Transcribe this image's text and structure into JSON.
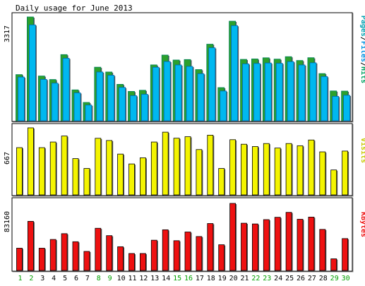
{
  "chart_data": {
    "type": "bar",
    "title": "Daily usage for June 2013",
    "days": [
      "1",
      "2",
      "3",
      "4",
      "5",
      "6",
      "7",
      "8",
      "9",
      "10",
      "11",
      "12",
      "13",
      "14",
      "15",
      "16",
      "17",
      "18",
      "19",
      "20",
      "21",
      "22",
      "23",
      "24",
      "25",
      "26",
      "27",
      "28",
      "29",
      "30"
    ],
    "weekend_days": [
      "1",
      "2",
      "8",
      "9",
      "15",
      "16",
      "22",
      "23",
      "29",
      "30"
    ],
    "colors": {
      "hits": "#00805c",
      "hits_fill": "#2ca02c",
      "files": "#0066aa",
      "files_fill": "#00b8f0",
      "visits_fill": "#f4f400",
      "kbytes_fill": "#ee1111",
      "weekday_text": "#000000",
      "weekend_text": "#00a000"
    },
    "panels": [
      {
        "id": "hits",
        "ymax_label": "3317",
        "ymax": 3317,
        "legend": [
          {
            "text": "Pages",
            "color": "#00a0b0"
          },
          {
            "text": "/",
            "color": "#000000"
          },
          {
            "text": "Files",
            "color": "#0090e0"
          },
          {
            "text": "/",
            "color": "#000000"
          },
          {
            "text": "Hits",
            "color": "#00a060"
          }
        ],
        "series": [
          {
            "name": "Hits",
            "values": [
              1475,
              3317,
              1430,
              1318,
              2114,
              987,
              586,
              1712,
              1558,
              1164,
              938,
              975,
              1785,
              2099,
              1941,
              1956,
              1636,
              2447,
              1060,
              3182,
              1962,
              1976,
              2012,
              1970,
              2048,
              1926,
              2015,
              1508,
              953,
              948
            ]
          },
          {
            "name": "Files",
            "values": [
              1397,
              3064,
              1323,
              1202,
              1997,
              892,
              501,
              1558,
              1453,
              1066,
              803,
              846,
              1710,
              1893,
              1783,
              1737,
              1505,
              2332,
              951,
              3040,
              1818,
              1831,
              1846,
              1836,
              1890,
              1783,
              1852,
              1414,
              780,
              814
            ]
          }
        ]
      },
      {
        "id": "visits",
        "ymax_label": "667",
        "ymax": 667,
        "legend": [
          {
            "text": "Visits",
            "color": "#c8c800"
          }
        ],
        "series": [
          {
            "name": "Visits",
            "values": [
              470,
              667,
              470,
              526,
              586,
              361,
              263,
              563,
              541,
              406,
              308,
              369,
              526,
              624,
              564,
              579,
              451,
              594,
              263,
              549,
              504,
              481,
              511,
              466,
              511,
              489,
              546,
              428,
              248,
              436
            ]
          }
        ]
      },
      {
        "id": "kbytes",
        "ymax_label": "83160",
        "ymax": 83160,
        "legend": [
          {
            "text": "KBytes",
            "color": "#ee1111"
          }
        ],
        "series": [
          {
            "name": "KBytes",
            "values": [
              27632,
              60920,
              27632,
              38440,
              45640,
              35640,
              23640,
              52320,
              43180,
              29440,
              21040,
              21040,
              37520,
              50440,
              36920,
              47720,
              42080,
              58200,
              31880,
              83160,
              58600,
              57680,
              63040,
              65940,
              72020,
              63500,
              66160,
              50920,
              14460,
              39540
            ]
          }
        ]
      }
    ]
  }
}
